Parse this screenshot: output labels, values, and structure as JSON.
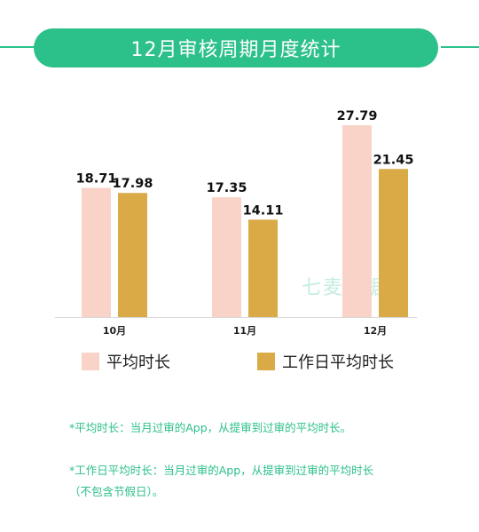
{
  "title": "12月审核周期月度统计",
  "watermark": "七麦数据",
  "colors": {
    "accent": "#2cc08a",
    "series_avg": "#f9d3c8",
    "series_workday": "#d9aa45"
  },
  "chart_data": {
    "type": "bar",
    "categories": [
      "10月",
      "11月",
      "12月"
    ],
    "series": [
      {
        "name": "平均时长",
        "values": [
          18.71,
          17.35,
          27.79
        ]
      },
      {
        "name": "工作日平均时长",
        "values": [
          17.98,
          14.11,
          21.45
        ]
      }
    ],
    "ylim": [
      0,
      27.79
    ],
    "grid": false,
    "legend": "bottom"
  },
  "notes": [
    "*平均时长：当月过审的App，从提审到过审的平均时长。",
    "*工作日平均时长：当月过审的App，从提审到过审的平均时长",
    "（不包含节假日）。"
  ]
}
